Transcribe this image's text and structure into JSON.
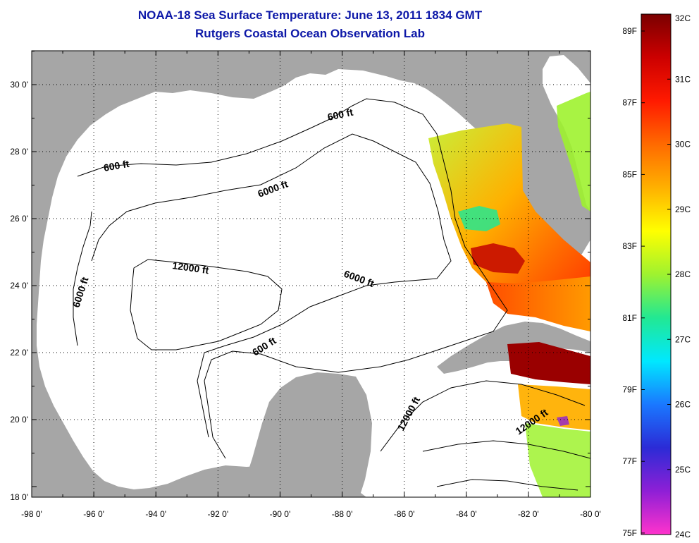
{
  "title": "NOAA-18 Sea Surface Temperature:  June 13, 2011 1834 GMT",
  "subtitle": "Rutgers Coastal Ocean Observation Lab",
  "lon_labels": [
    "-98 0'",
    "-96 0'",
    "-94 0'",
    "-92 0'",
    "-90 0'",
    "-88 0'",
    "-86 0'",
    "-84 0'",
    "-82 0'",
    "-80 0'"
  ],
  "lat_labels": [
    "30 0'",
    "28 0'",
    "26 0'",
    "24 0'",
    "22 0'",
    "20 0'",
    "18 0'"
  ],
  "contour_labels": [
    "600 ft",
    "600 ft",
    "600 ft",
    "6000 ft",
    "6000 ft",
    "6000 ft",
    "12000 ft",
    "12000 ft",
    "12000 ft"
  ],
  "colorbar": {
    "fahrenheit": [
      "89F",
      "87F",
      "85F",
      "83F",
      "81F",
      "79F",
      "77F",
      "75F"
    ],
    "celsius": [
      "32C",
      "31C",
      "30C",
      "29C",
      "28C",
      "27C",
      "26C",
      "25C",
      "24C"
    ],
    "stops": [
      "#ff33cc",
      "#8f1fd6",
      "#2b2bd6",
      "#1a78ff",
      "#00e8ff",
      "#22e892",
      "#9ff22f",
      "#ffff00",
      "#ffb000",
      "#ff6a00",
      "#ff1a00",
      "#cc0000",
      "#7a0000"
    ]
  },
  "colors": {
    "land": "#a6a6a6",
    "ocean": "#ffffff",
    "title": "#0d18a8"
  }
}
